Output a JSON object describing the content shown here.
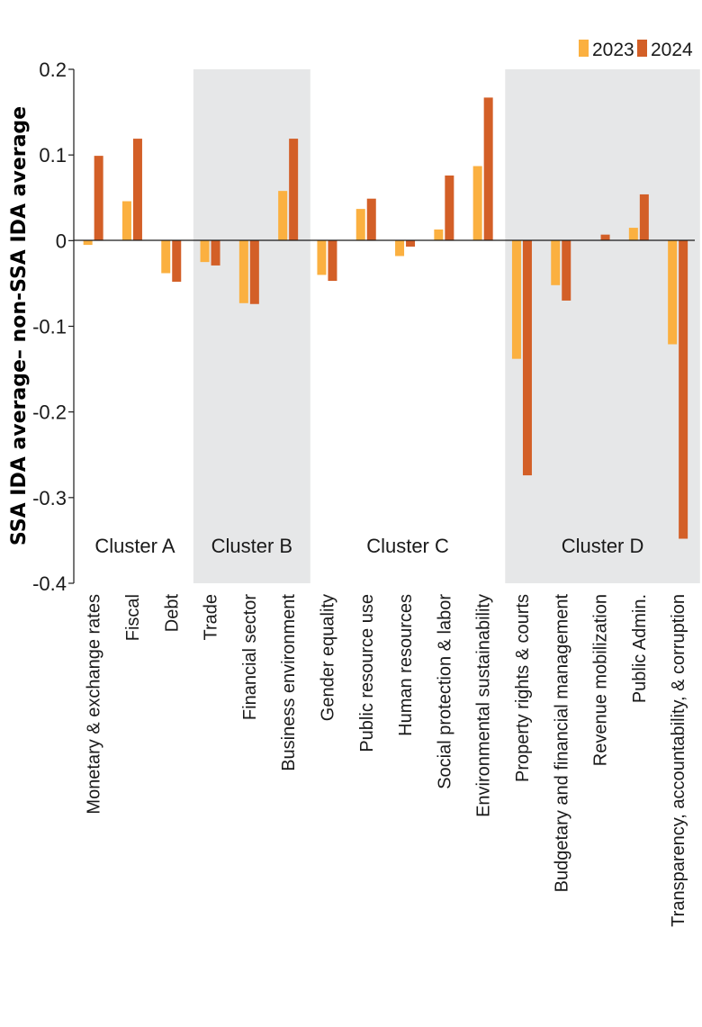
{
  "chart_data": {
    "type": "bar",
    "title": "",
    "xlabel": "",
    "ylabel": "SSA IDA average– non-SSA IDA average",
    "ylim": [
      -0.4,
      0.2
    ],
    "yticks": [
      {
        "value": 0.2,
        "label": "0.2"
      },
      {
        "value": 0.1,
        "label": "0.1"
      },
      {
        "value": 0,
        "label": "0"
      },
      {
        "value": -0.1,
        "label": "-0.1"
      },
      {
        "value": -0.2,
        "label": "-0.2"
      },
      {
        "value": -0.3,
        "label": "-0.3"
      },
      {
        "value": -0.4,
        "label": "-0.4"
      }
    ],
    "categories": [
      "Monetary & exchange rates",
      "Fiscal",
      "Debt",
      "Trade",
      "Financial sector",
      "Business environment",
      "Gender equality",
      "Public resource use",
      "Human resources",
      "Social protection & labor",
      "Environmental sustainability",
      "Property rights & courts",
      "Budgetary and financial management",
      "Revenue mobilization",
      "Public Admin.",
      "Transparency, accountability, & corruption"
    ],
    "series": [
      {
        "name": "2023",
        "color": "#FBB040",
        "values": [
          -0.005,
          0.046,
          -0.038,
          -0.025,
          -0.073,
          0.058,
          -0.04,
          0.037,
          -0.018,
          0.013,
          0.087,
          -0.138,
          -0.052,
          0.0,
          0.015,
          -0.121
        ]
      },
      {
        "name": "2024",
        "color": "#D35F27",
        "values": [
          0.099,
          0.119,
          -0.048,
          -0.029,
          -0.074,
          0.119,
          -0.047,
          0.049,
          -0.007,
          0.076,
          0.167,
          -0.274,
          -0.07,
          0.007,
          0.054,
          -0.348
        ]
      }
    ],
    "clusters": [
      {
        "name": "Cluster A",
        "start": 0,
        "end": 2,
        "shaded": false
      },
      {
        "name": "Cluster B",
        "start": 3,
        "end": 5,
        "shaded": true
      },
      {
        "name": "Cluster C",
        "start": 6,
        "end": 10,
        "shaded": false
      },
      {
        "name": "Cluster D",
        "start": 11,
        "end": 15,
        "shaded": true
      }
    ],
    "legend": {
      "position": "top-right",
      "entries": [
        "2023",
        "2024"
      ]
    },
    "grid": false
  },
  "colors": {
    "shade": "#E6E7E8",
    "axis": "#1a1a1a"
  }
}
